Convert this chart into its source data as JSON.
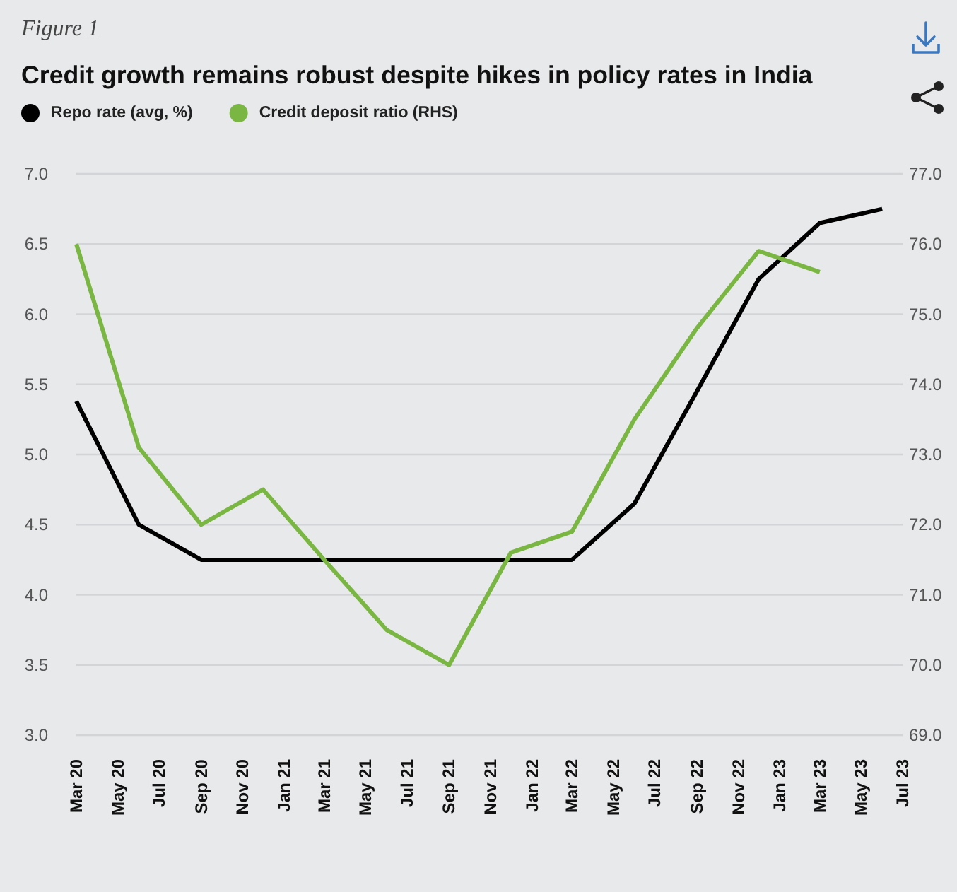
{
  "chart_data": {
    "type": "line",
    "title": "Credit growth remains robust despite hikes in policy rates in India",
    "annotations": [
      "Figure 1"
    ],
    "x": [
      "2020-03",
      "2020-06",
      "2020-09",
      "2020-12",
      "2021-03",
      "2021-06",
      "2021-09",
      "2021-12",
      "2022-03",
      "2022-06",
      "2022-09",
      "2022-12",
      "2023-03",
      "2023-06"
    ],
    "series": [
      {
        "name": "Repo rate (avg, %)",
        "color": "#000000",
        "values": [
          5.38,
          4.5,
          4.25,
          4.25,
          4.25,
          4.25,
          4.25,
          4.25,
          4.25,
          4.65,
          5.45,
          6.25,
          6.65,
          6.75
        ]
      },
      {
        "name": "Credit deposit ratio (RHS)",
        "color": "#7ab642",
        "axis": "y2",
        "values": [
          76.0,
          73.1,
          72.0,
          72.5,
          71.5,
          70.5,
          70.0,
          71.6,
          71.9,
          73.5,
          74.8,
          75.9,
          75.6,
          null
        ]
      }
    ],
    "xlim": [
      "2020-03",
      "2023-07"
    ],
    "xticks": [
      {
        "value": "2020-03",
        "label": "Mar 20"
      },
      {
        "value": "2020-05",
        "label": "May 20"
      },
      {
        "value": "2020-07",
        "label": "Jul 20"
      },
      {
        "value": "2020-09",
        "label": "Sep 20"
      },
      {
        "value": "2020-11",
        "label": "Nov 20"
      },
      {
        "value": "2021-01",
        "label": "Jan 21"
      },
      {
        "value": "2021-03",
        "label": "Mar 21"
      },
      {
        "value": "2021-05",
        "label": "May 21"
      },
      {
        "value": "2021-07",
        "label": "Jul 21"
      },
      {
        "value": "2021-09",
        "label": "Sep 21"
      },
      {
        "value": "2021-11",
        "label": "Nov 21"
      },
      {
        "value": "2022-01",
        "label": "Jan 22"
      },
      {
        "value": "2022-03",
        "label": "Mar 22"
      },
      {
        "value": "2022-05",
        "label": "May 22"
      },
      {
        "value": "2022-07",
        "label": "Jul 22"
      },
      {
        "value": "2022-09",
        "label": "Sep 22"
      },
      {
        "value": "2022-11",
        "label": "Nov 22"
      },
      {
        "value": "2023-01",
        "label": "Jan 23"
      },
      {
        "value": "2023-03",
        "label": "Mar 23"
      },
      {
        "value": "2023-05",
        "label": "May 23"
      },
      {
        "value": "2023-07",
        "label": "Jul 23"
      }
    ],
    "ylim": [
      3,
      7
    ],
    "yticks": [
      {
        "value": 3,
        "label": "3.0"
      },
      {
        "value": 3.5,
        "label": "3.5"
      },
      {
        "value": 4,
        "label": "4.0"
      },
      {
        "value": 4.5,
        "label": "4.5"
      },
      {
        "value": 5,
        "label": "5.0"
      },
      {
        "value": 5.5,
        "label": "5.5"
      },
      {
        "value": 6,
        "label": "6.0"
      },
      {
        "value": 6.5,
        "label": "6.5"
      },
      {
        "value": 7,
        "label": "7.0"
      }
    ],
    "y2lim": [
      69,
      77
    ],
    "y2ticks": [
      {
        "value": 69,
        "label": "69.0"
      },
      {
        "value": 70,
        "label": "70.0"
      },
      {
        "value": 71,
        "label": "71.0"
      },
      {
        "value": 72,
        "label": "72.0"
      },
      {
        "value": 73,
        "label": "73.0"
      },
      {
        "value": 74,
        "label": "74.0"
      },
      {
        "value": 75,
        "label": "75.0"
      },
      {
        "value": 76,
        "label": "76.0"
      },
      {
        "value": 77,
        "label": "77.0"
      }
    ],
    "grid": "y",
    "legend": "top left",
    "marker": "none",
    "line_style": "solid"
  }
}
